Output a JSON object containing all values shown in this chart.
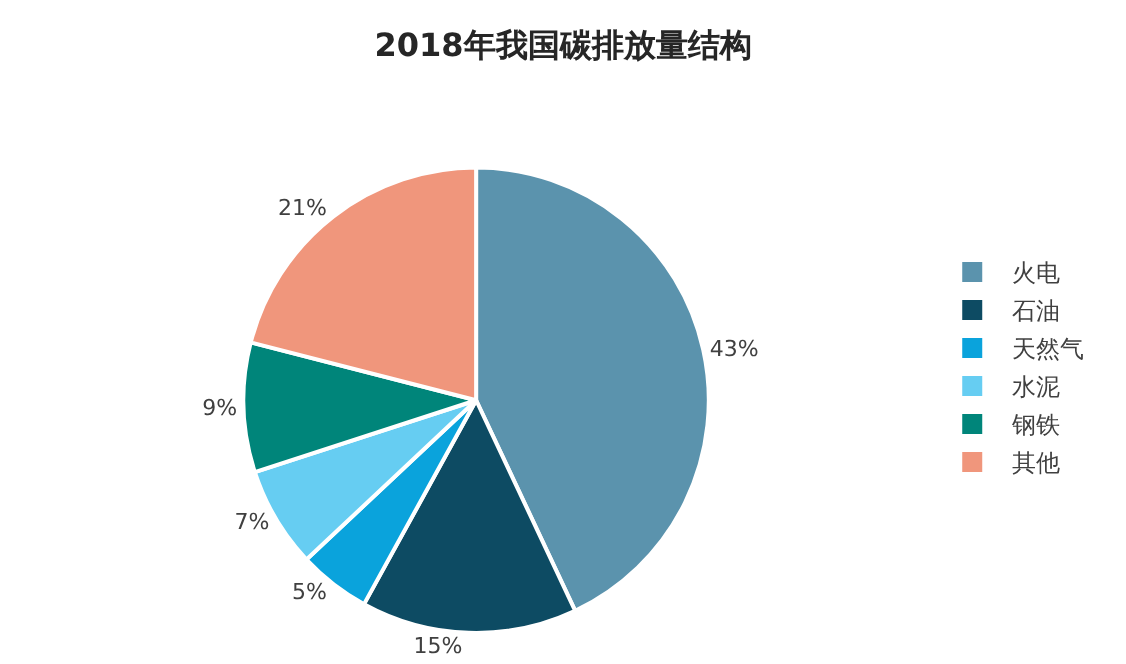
{
  "chart_data": {
    "type": "pie",
    "title": "2018年我国碳排放量结构",
    "categories": [
      "火电",
      "石油",
      "天然气",
      "水泥",
      "钢铁",
      "其他"
    ],
    "values": [
      43,
      15,
      5,
      7,
      9,
      21
    ],
    "colors": [
      "#5b93ad",
      "#0d4b63",
      "#0aa3dc",
      "#66cdf2",
      "#00857a",
      "#f0967c"
    ],
    "value_labels": [
      "43%",
      "15%",
      "5%",
      "7%",
      "9%",
      "21%"
    ],
    "legend": "right"
  }
}
